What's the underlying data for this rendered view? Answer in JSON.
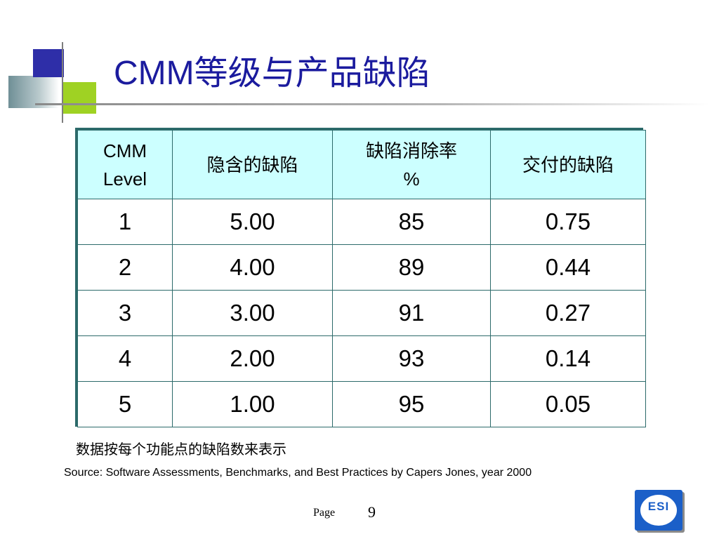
{
  "title": "CMM等级与产品缺陷",
  "table": {
    "headers": [
      {
        "lines": [
          "CMM",
          "Level"
        ]
      },
      {
        "lines": [
          "隐含的缺陷"
        ]
      },
      {
        "lines": [
          "缺陷消除率",
          "%"
        ]
      },
      {
        "lines": [
          "交付的缺陷"
        ]
      }
    ],
    "rows": [
      [
        "1",
        "5.00",
        "85",
        "0.75"
      ],
      [
        "2",
        "4.00",
        "89",
        "0.44"
      ],
      [
        "3",
        "3.00",
        "91",
        "0.27"
      ],
      [
        "4",
        "2.00",
        "93",
        "0.14"
      ],
      [
        "5",
        "1.00",
        "95",
        "0.05"
      ]
    ]
  },
  "note": "数据按每个功能点的缺陷数来表示",
  "source": "Source: Software Assessments, Benchmarks, and Best Practices by Capers Jones, year 2000",
  "footer": {
    "page_label": "Page",
    "page_number": "9"
  },
  "logo": {
    "text": "ESI",
    "icon": "esi-logo-icon"
  },
  "colors": {
    "title": "#1b1b9e",
    "header_bg": "#ccffff",
    "table_border": "#2c6a6a",
    "accent_blue": "#2e2ea8",
    "accent_green": "#9fd223",
    "logo_blue": "#1b5fc8"
  }
}
